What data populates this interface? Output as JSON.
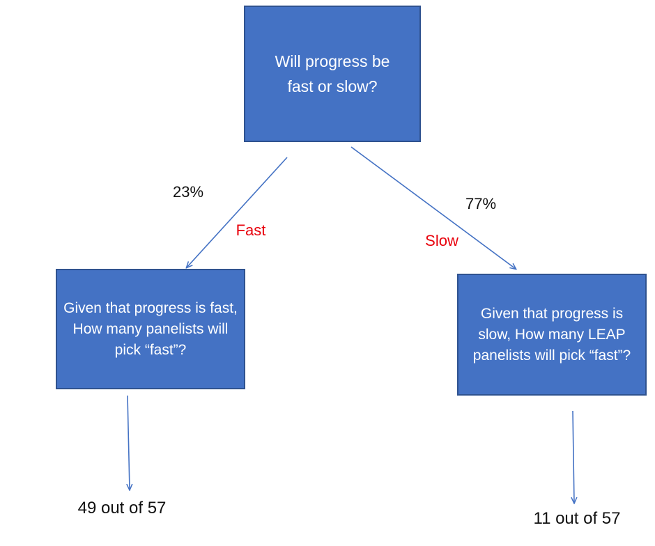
{
  "root": {
    "text": "Will progress be fast or slow?"
  },
  "branches": [
    {
      "probability": "23%",
      "label": "Fast",
      "question": "Given that progress is fast, How many panelists will pick “fast”?",
      "result": "49 out of 57"
    },
    {
      "probability": "77%",
      "label": "Slow",
      "question": "Given that progress is slow, How many LEAP panelists will pick “fast”?",
      "result": "11 out of 57"
    }
  ],
  "colors": {
    "box_fill": "#4472C4",
    "box_border": "#2F528F",
    "arrow": "#4472C4",
    "branch_label": "#e8000b"
  }
}
